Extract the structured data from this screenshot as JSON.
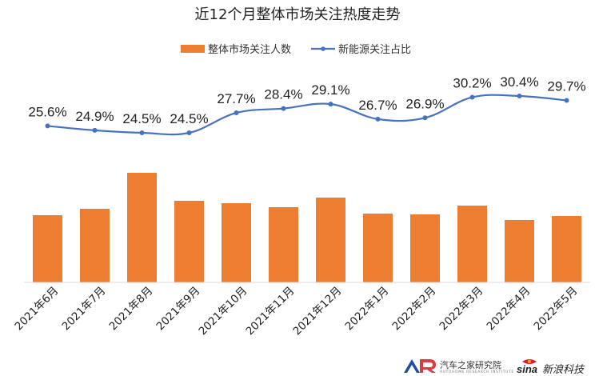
{
  "chart_data": {
    "type": "bar",
    "title": "近12个月整体市场关注热度走势",
    "categories": [
      "2021年6月",
      "2021年7月",
      "2021年8月",
      "2021年9月",
      "2021年10月",
      "2021年11月",
      "2021年12月",
      "2022年1月",
      "2022年2月",
      "2022年3月",
      "2022年4月",
      "2022年5月"
    ],
    "series": [
      {
        "name": "整体市场关注人数",
        "type": "bar",
        "color": "#ED7D31",
        "values": [
          84,
          92,
          137,
          102,
          99,
          94,
          106,
          86,
          85,
          96,
          78,
          83
        ]
      },
      {
        "name": "新能源关注占比",
        "type": "line",
        "color": "#4472C4",
        "values": [
          25.6,
          24.9,
          24.5,
          24.5,
          27.7,
          28.4,
          29.1,
          26.7,
          26.9,
          30.2,
          30.4,
          29.7
        ],
        "labels": [
          "25.6%",
          "24.9%",
          "24.5%",
          "24.5%",
          "27.7%",
          "28.4%",
          "29.1%",
          "26.7%",
          "26.9%",
          "30.2%",
          "30.4%",
          "29.7%"
        ]
      }
    ],
    "legend_position": "top-center",
    "grid": false
  },
  "logos": {
    "autohome_text": "汽车之家研究院",
    "autohome_sub": "AUTOHOME RESEARCH INSTITUTE",
    "sina_text": "新浪科技"
  }
}
